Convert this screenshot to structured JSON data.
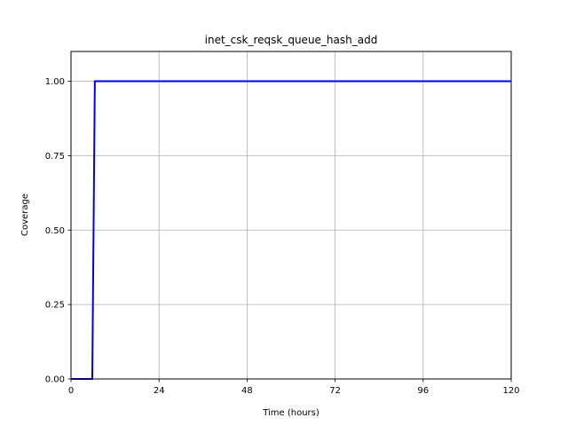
{
  "chart_data": {
    "type": "line",
    "title": "inet_csk_reqsk_queue_hash_add",
    "xlabel": "Time (hours)",
    "ylabel": "Coverage",
    "xlim": [
      0,
      120
    ],
    "ylim": [
      0,
      1.1
    ],
    "xticks": [
      0,
      24,
      48,
      72,
      96,
      120
    ],
    "xtick_labels": [
      "0",
      "24",
      "48",
      "72",
      "96",
      "120"
    ],
    "yticks": [
      0,
      0.25,
      0.5,
      0.75,
      1.0
    ],
    "ytick_labels": [
      "0.00",
      "0.25",
      "0.50",
      "0.75",
      "1.00"
    ],
    "grid": true,
    "legend": "none",
    "series": [
      {
        "color": "#0000ee",
        "x": [
          0,
          5.8,
          6.5,
          120
        ],
        "y": [
          0,
          0,
          1.0,
          1.0
        ]
      }
    ]
  }
}
